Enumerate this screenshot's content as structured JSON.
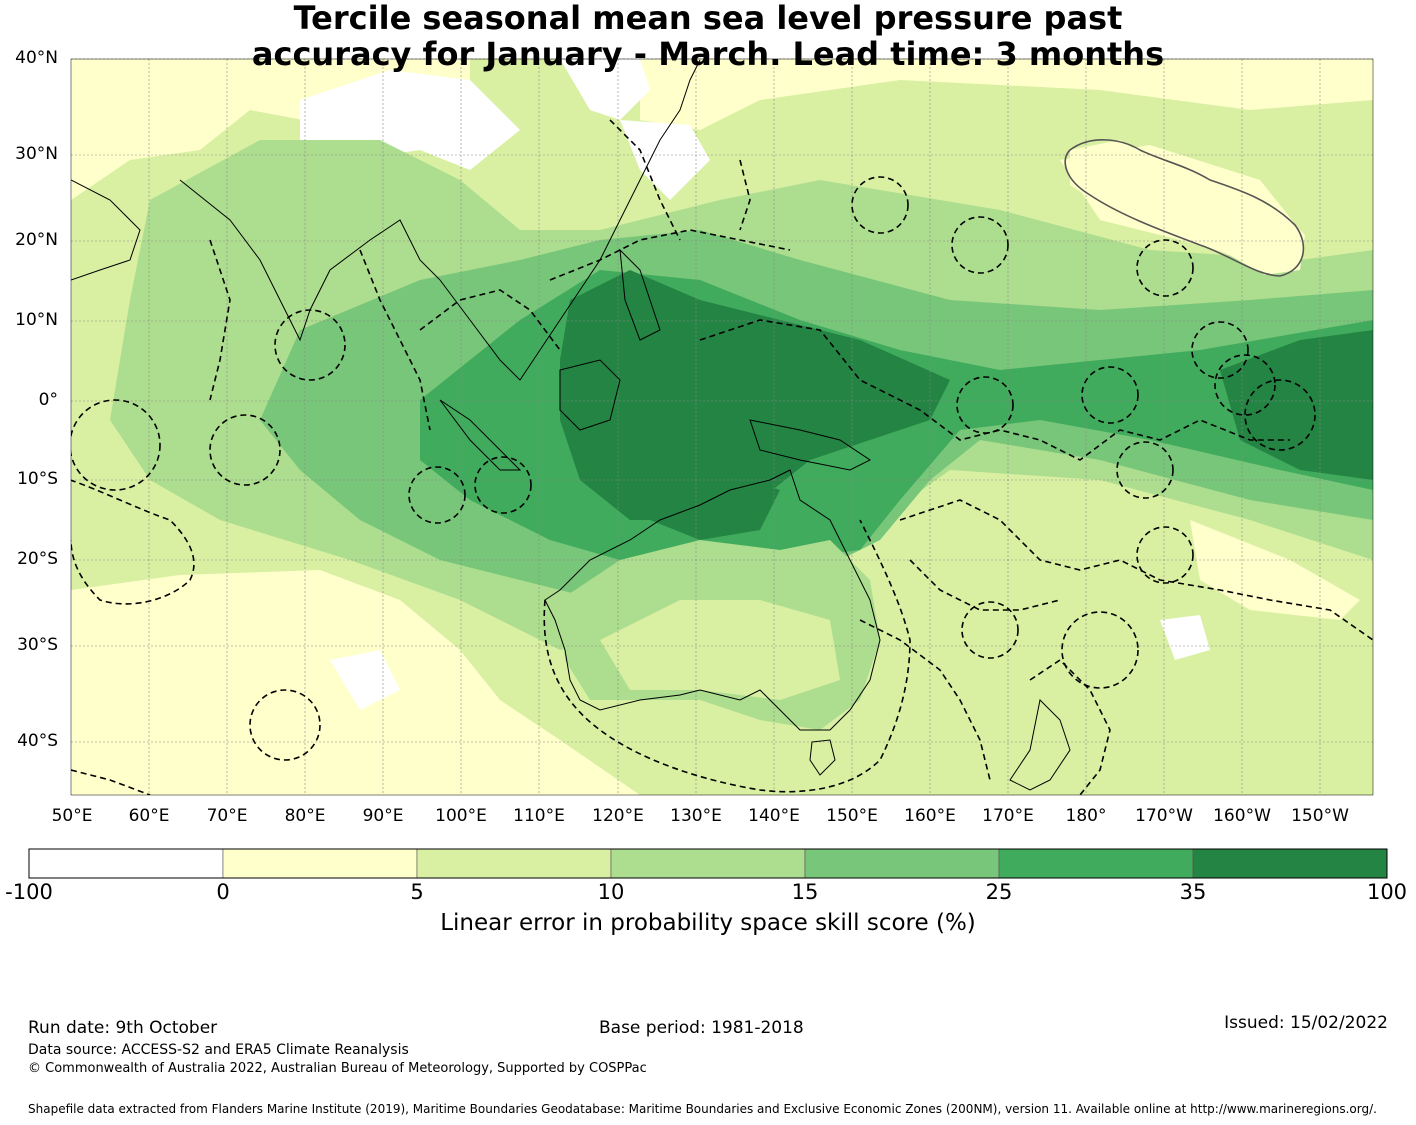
{
  "title": {
    "line1": "Tercile seasonal mean sea level pressure past",
    "line2": "accuracy for January - March. Lead time: 3 months"
  },
  "map": {
    "lat_labels": [
      "40°N",
      "30°N",
      "20°N",
      "10°N",
      "0°",
      "10°S",
      "20°S",
      "30°S",
      "40°S"
    ],
    "lon_labels": [
      "50°E",
      "60°E",
      "70°E",
      "80°E",
      "90°E",
      "100°E",
      "110°E",
      "120°E",
      "130°E",
      "140°E",
      "150°E",
      "160°E",
      "170°E",
      "180°",
      "170°W",
      "160°W",
      "150°W"
    ],
    "colors": {
      "bin_neg": "#ffffff",
      "bin_0_5": "#ffffcc",
      "bin_5_10": "#d9f0a3",
      "bin_10_15": "#addd8e",
      "bin_15_25": "#78c679",
      "bin_25_35": "#41ab5d",
      "bin_35_100": "#238443",
      "boundary": "#000000",
      "grid": "#888888"
    }
  },
  "colorbar": {
    "ticks": [
      "-100",
      "0",
      "5",
      "10",
      "15",
      "25",
      "35",
      "100"
    ],
    "label": "Linear error in probability space skill score (%)",
    "bin_colors": [
      "#ffffff",
      "#ffffcc",
      "#d9f0a3",
      "#addd8e",
      "#78c679",
      "#41ab5d",
      "#238443"
    ]
  },
  "footer": {
    "run_date": "Run date: 9th October",
    "base_period": "Base period: 1981-2018",
    "issued": "Issued: 15/02/2022",
    "data_source": "Data source: ACCESS-S2 and ERA5 Climate Reanalysis",
    "copyright": "© Commonwealth of Australia 2022, Australian Bureau of Meteorology, Supported by COSPPac",
    "shapefile": "Shapefile data extracted from Flanders Marine Institute (2019), Maritime Boundaries Geodatabase: Maritime Boundaries and Exclusive Economic Zones (200NM), version 11. Available online at http://www.marineregions.org/."
  }
}
